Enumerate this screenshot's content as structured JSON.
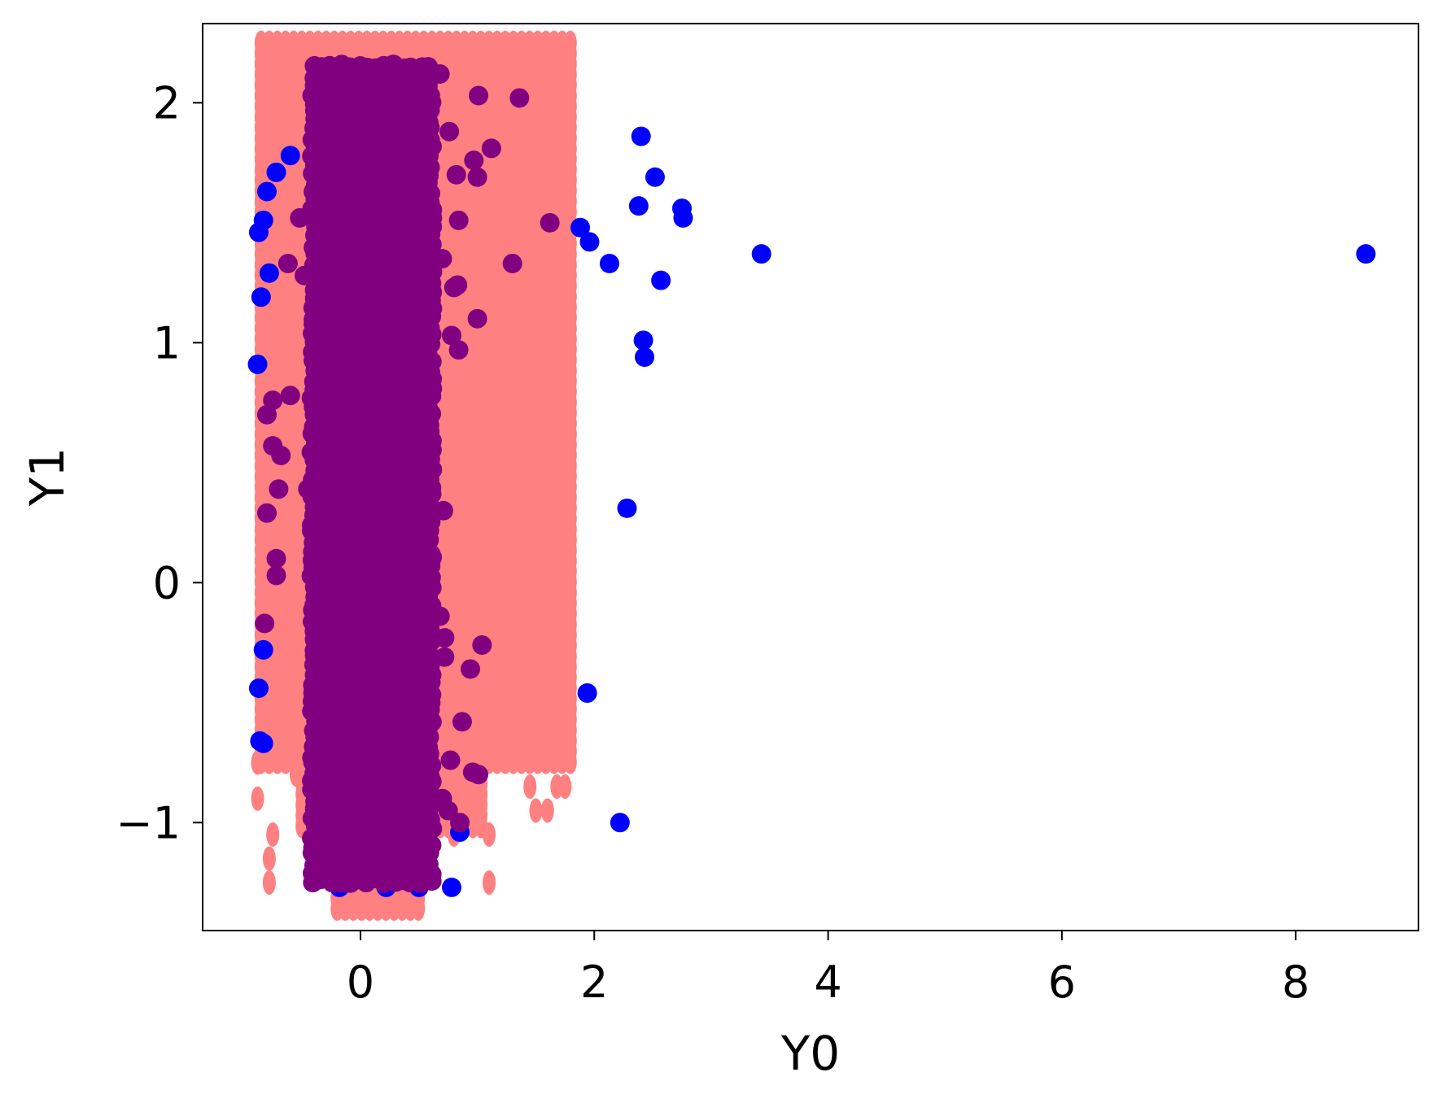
{
  "chart_data": {
    "type": "scatter",
    "title": "",
    "xlabel": "Y0",
    "ylabel": "Y1",
    "xlim": [
      -1.35,
      9.05
    ],
    "ylim": [
      -1.45,
      2.33
    ],
    "grid": false,
    "xticks": [
      {
        "value": 0,
        "label": "0"
      },
      {
        "value": 2,
        "label": "2"
      },
      {
        "value": 4,
        "label": "4"
      },
      {
        "value": 6,
        "label": "6"
      },
      {
        "value": 8,
        "label": "8"
      }
    ],
    "yticks": [
      {
        "value": -1,
        "label": "−1"
      },
      {
        "value": 0,
        "label": "0"
      },
      {
        "value": 1,
        "label": "1"
      },
      {
        "value": 2,
        "label": "2"
      }
    ],
    "series": [
      {
        "color": "#ff8080",
        "marker": "ellipse",
        "shape": "dense vertical grid of markers",
        "regions": [
          {
            "x": [
              -0.85,
              1.85
            ],
            "y": [
              -0.75,
              2.25
            ]
          },
          {
            "x": [
              -0.5,
              1.1
            ],
            "y": [
              -1.05,
              -0.75
            ]
          },
          {
            "x": [
              -0.2,
              0.55
            ],
            "y": [
              -1.4,
              -1.05
            ]
          }
        ],
        "points": [
          [
            -0.75,
            2.15
          ],
          [
            -0.6,
            2.15
          ],
          [
            -0.8,
            1.95
          ],
          [
            -0.6,
            1.85
          ],
          [
            -0.62,
            1.6
          ],
          [
            -0.88,
            -0.75
          ],
          [
            -0.88,
            -0.9
          ],
          [
            -0.55,
            -0.8
          ],
          [
            -0.48,
            -0.9
          ],
          [
            -0.75,
            -1.05
          ],
          [
            -0.78,
            -1.15
          ],
          [
            -0.78,
            -1.25
          ],
          [
            0.8,
            -1.05
          ],
          [
            1.1,
            -1.05
          ],
          [
            1.1,
            -1.25
          ],
          [
            1.45,
            -0.85
          ],
          [
            1.5,
            -0.95
          ],
          [
            1.6,
            -0.95
          ],
          [
            1.68,
            -0.85
          ],
          [
            1.75,
            -0.85
          ]
        ]
      },
      {
        "color": "#0000ff",
        "marker": "circle",
        "points": [
          [
            2.4,
            1.86
          ],
          [
            2.52,
            1.69
          ],
          [
            2.38,
            1.57
          ],
          [
            2.75,
            1.56
          ],
          [
            2.76,
            1.52
          ],
          [
            1.88,
            1.48
          ],
          [
            1.96,
            1.42
          ],
          [
            2.13,
            1.33
          ],
          [
            3.43,
            1.37
          ],
          [
            8.6,
            1.37
          ],
          [
            2.57,
            1.26
          ],
          [
            2.42,
            1.01
          ],
          [
            2.43,
            0.94
          ],
          [
            2.28,
            0.31
          ],
          [
            1.94,
            -0.46
          ],
          [
            2.22,
            -1.0
          ],
          [
            -0.88,
            0.91
          ],
          [
            -0.85,
            1.19
          ],
          [
            -0.87,
            1.46
          ],
          [
            -0.83,
            1.51
          ],
          [
            -0.78,
            1.29
          ],
          [
            -0.8,
            1.63
          ],
          [
            -0.72,
            1.71
          ],
          [
            -0.6,
            1.78
          ],
          [
            -0.83,
            -0.28
          ],
          [
            -0.87,
            -0.44
          ],
          [
            -0.86,
            -0.66
          ],
          [
            -0.83,
            -0.67
          ],
          [
            -0.18,
            -1.27
          ],
          [
            0.22,
            -1.27
          ],
          [
            0.5,
            -1.27
          ],
          [
            0.78,
            -1.27
          ],
          [
            0.85,
            -1.04
          ],
          [
            0.42,
            -1.22
          ]
        ]
      },
      {
        "color": "#800080",
        "marker": "circle",
        "shape": "dense vertical band of markers",
        "regions": [
          {
            "x": [
              -0.4,
              0.65
            ],
            "y": [
              -1.25,
              2.15
            ]
          },
          {
            "x": [
              -0.2,
              0.5
            ],
            "y": [
              -1.25,
              -0.3
            ]
          }
        ],
        "points": [
          [
            1.36,
            2.02
          ],
          [
            1.01,
            2.03
          ],
          [
            0.68,
            2.12
          ],
          [
            1.12,
            1.81
          ],
          [
            0.97,
            1.76
          ],
          [
            1.0,
            1.69
          ],
          [
            0.76,
            1.88
          ],
          [
            0.82,
            1.7
          ],
          [
            1.62,
            1.5
          ],
          [
            0.84,
            1.51
          ],
          [
            1.3,
            1.33
          ],
          [
            0.8,
            1.23
          ],
          [
            0.83,
            1.24
          ],
          [
            0.7,
            1.35
          ],
          [
            1.0,
            1.1
          ],
          [
            0.78,
            1.03
          ],
          [
            0.84,
            0.97
          ],
          [
            -0.52,
            1.52
          ],
          [
            -0.62,
            1.33
          ],
          [
            -0.48,
            1.28
          ],
          [
            -0.6,
            0.78
          ],
          [
            -0.75,
            0.76
          ],
          [
            -0.8,
            0.7
          ],
          [
            -0.75,
            0.57
          ],
          [
            -0.68,
            0.53
          ],
          [
            -0.7,
            0.39
          ],
          [
            -0.45,
            0.39
          ],
          [
            -0.8,
            0.29
          ],
          [
            -0.72,
            0.1
          ],
          [
            -0.72,
            0.03
          ],
          [
            -0.82,
            -0.17
          ],
          [
            0.71,
            0.3
          ],
          [
            0.6,
            0.12
          ],
          [
            0.68,
            -0.14
          ],
          [
            0.72,
            -0.23
          ],
          [
            0.72,
            -0.31
          ],
          [
            1.04,
            -0.26
          ],
          [
            0.94,
            -0.36
          ],
          [
            0.87,
            -0.58
          ],
          [
            0.77,
            -0.74
          ],
          [
            0.96,
            -0.79
          ],
          [
            1.01,
            -0.8
          ],
          [
            0.85,
            -1.0
          ],
          [
            0.7,
            -0.9
          ],
          [
            0.75,
            -0.95
          ],
          [
            0.5,
            -0.65
          ],
          [
            0.55,
            0.85
          ]
        ]
      }
    ]
  }
}
